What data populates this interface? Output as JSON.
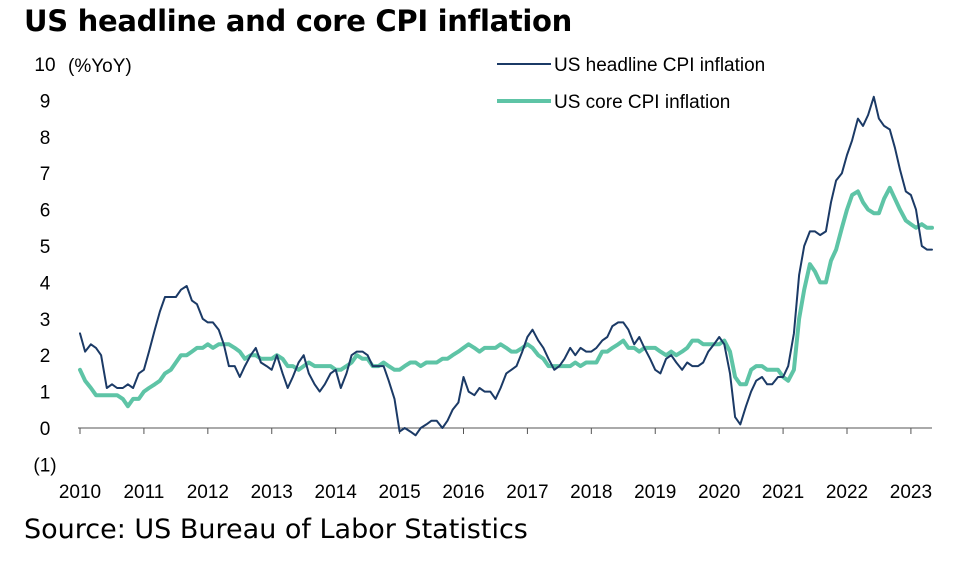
{
  "title": "US headline and core CPI inflation",
  "source": "Source: US Bureau of Labor Statistics",
  "chart_data": {
    "type": "line",
    "ylabel": "(%YoY)",
    "ylim": [
      -1,
      10
    ],
    "yticks": [
      -1,
      0,
      1,
      2,
      3,
      4,
      5,
      6,
      7,
      8,
      9,
      10
    ],
    "ytick_labels": [
      "(1)",
      "0",
      "1",
      "2",
      "3",
      "4",
      "5",
      "6",
      "7",
      "8",
      "9",
      "10"
    ],
    "xlim": [
      2010.0,
      2023.33
    ],
    "xticks": [
      2010,
      2011,
      2012,
      2013,
      2014,
      2015,
      2016,
      2017,
      2018,
      2019,
      2020,
      2021,
      2022,
      2023
    ],
    "xtick_labels": [
      "2010",
      "2011",
      "2012",
      "2013",
      "2014",
      "2015",
      "2016",
      "2017",
      "2018",
      "2019",
      "2020",
      "2021",
      "2022",
      "2023"
    ],
    "grid": false,
    "legend": "top-right",
    "colors": {
      "headline": "#1b3a66",
      "core": "#5ec4a6"
    },
    "series": [
      {
        "name": "US headline CPI inflation",
        "color": "#1b3a66",
        "x": [
          2010.0,
          2010.08,
          2010.17,
          2010.25,
          2010.33,
          2010.42,
          2010.5,
          2010.58,
          2010.67,
          2010.75,
          2010.83,
          2010.92,
          2011.0,
          2011.08,
          2011.17,
          2011.25,
          2011.33,
          2011.42,
          2011.5,
          2011.58,
          2011.67,
          2011.75,
          2011.83,
          2011.92,
          2012.0,
          2012.08,
          2012.17,
          2012.25,
          2012.33,
          2012.42,
          2012.5,
          2012.58,
          2012.67,
          2012.75,
          2012.83,
          2012.92,
          2013.0,
          2013.08,
          2013.17,
          2013.25,
          2013.33,
          2013.42,
          2013.5,
          2013.58,
          2013.67,
          2013.75,
          2013.83,
          2013.92,
          2014.0,
          2014.08,
          2014.17,
          2014.25,
          2014.33,
          2014.42,
          2014.5,
          2014.58,
          2014.67,
          2014.75,
          2014.83,
          2014.92,
          2015.0,
          2015.08,
          2015.17,
          2015.25,
          2015.33,
          2015.42,
          2015.5,
          2015.58,
          2015.67,
          2015.75,
          2015.83,
          2015.92,
          2016.0,
          2016.08,
          2016.17,
          2016.25,
          2016.33,
          2016.42,
          2016.5,
          2016.58,
          2016.67,
          2016.75,
          2016.83,
          2016.92,
          2017.0,
          2017.08,
          2017.17,
          2017.25,
          2017.33,
          2017.42,
          2017.5,
          2017.58,
          2017.67,
          2017.75,
          2017.83,
          2017.92,
          2018.0,
          2018.08,
          2018.17,
          2018.25,
          2018.33,
          2018.42,
          2018.5,
          2018.58,
          2018.67,
          2018.75,
          2018.83,
          2018.92,
          2019.0,
          2019.08,
          2019.17,
          2019.25,
          2019.33,
          2019.42,
          2019.5,
          2019.58,
          2019.67,
          2019.75,
          2019.83,
          2019.92,
          2020.0,
          2020.08,
          2020.17,
          2020.25,
          2020.33,
          2020.42,
          2020.5,
          2020.58,
          2020.67,
          2020.75,
          2020.83,
          2020.92,
          2021.0,
          2021.08,
          2021.17,
          2021.25,
          2021.33,
          2021.42,
          2021.5,
          2021.58,
          2021.67,
          2021.75,
          2021.83,
          2021.92,
          2022.0,
          2022.08,
          2022.17,
          2022.25,
          2022.33,
          2022.42,
          2022.5,
          2022.58,
          2022.67,
          2022.75,
          2022.83,
          2022.92,
          2023.0,
          2023.08,
          2023.17,
          2023.25,
          2023.33
        ],
        "values": [
          2.6,
          2.1,
          2.3,
          2.2,
          2.0,
          1.1,
          1.2,
          1.1,
          1.1,
          1.2,
          1.1,
          1.5,
          1.6,
          2.1,
          2.7,
          3.2,
          3.6,
          3.6,
          3.6,
          3.8,
          3.9,
          3.5,
          3.4,
          3.0,
          2.9,
          2.9,
          2.7,
          2.3,
          1.7,
          1.7,
          1.4,
          1.7,
          2.0,
          2.2,
          1.8,
          1.7,
          1.6,
          2.0,
          1.5,
          1.1,
          1.4,
          1.8,
          2.0,
          1.5,
          1.2,
          1.0,
          1.2,
          1.5,
          1.6,
          1.1,
          1.5,
          2.0,
          2.1,
          2.1,
          2.0,
          1.7,
          1.7,
          1.7,
          1.3,
          0.8,
          -0.1,
          0.0,
          -0.1,
          -0.2,
          0.0,
          0.1,
          0.2,
          0.2,
          0.0,
          0.2,
          0.5,
          0.7,
          1.4,
          1.0,
          0.9,
          1.1,
          1.0,
          1.0,
          0.8,
          1.1,
          1.5,
          1.6,
          1.7,
          2.1,
          2.5,
          2.7,
          2.4,
          2.2,
          1.9,
          1.6,
          1.7,
          1.9,
          2.2,
          2.0,
          2.2,
          2.1,
          2.1,
          2.2,
          2.4,
          2.5,
          2.8,
          2.9,
          2.9,
          2.7,
          2.3,
          2.5,
          2.2,
          1.9,
          1.6,
          1.5,
          1.9,
          2.0,
          1.8,
          1.6,
          1.8,
          1.7,
          1.7,
          1.8,
          2.1,
          2.3,
          2.5,
          2.3,
          1.5,
          0.3,
          0.1,
          0.6,
          1.0,
          1.3,
          1.4,
          1.2,
          1.2,
          1.4,
          1.4,
          1.7,
          2.6,
          4.2,
          5.0,
          5.4,
          5.4,
          5.3,
          5.4,
          6.2,
          6.8,
          7.0,
          7.5,
          7.9,
          8.5,
          8.3,
          8.6,
          9.1,
          8.5,
          8.3,
          8.2,
          7.7,
          7.1,
          6.5,
          6.4,
          6.0,
          5.0,
          4.9,
          4.9
        ]
      },
      {
        "name": "US core CPI inflation",
        "color": "#5ec4a6",
        "x": [
          2010.0,
          2010.08,
          2010.17,
          2010.25,
          2010.33,
          2010.42,
          2010.5,
          2010.58,
          2010.67,
          2010.75,
          2010.83,
          2010.92,
          2011.0,
          2011.08,
          2011.17,
          2011.25,
          2011.33,
          2011.42,
          2011.5,
          2011.58,
          2011.67,
          2011.75,
          2011.83,
          2011.92,
          2012.0,
          2012.08,
          2012.17,
          2012.25,
          2012.33,
          2012.42,
          2012.5,
          2012.58,
          2012.67,
          2012.75,
          2012.83,
          2012.92,
          2013.0,
          2013.08,
          2013.17,
          2013.25,
          2013.33,
          2013.42,
          2013.5,
          2013.58,
          2013.67,
          2013.75,
          2013.83,
          2013.92,
          2014.0,
          2014.08,
          2014.17,
          2014.25,
          2014.33,
          2014.42,
          2014.5,
          2014.58,
          2014.67,
          2014.75,
          2014.83,
          2014.92,
          2015.0,
          2015.08,
          2015.17,
          2015.25,
          2015.33,
          2015.42,
          2015.5,
          2015.58,
          2015.67,
          2015.75,
          2015.83,
          2015.92,
          2016.0,
          2016.08,
          2016.17,
          2016.25,
          2016.33,
          2016.42,
          2016.5,
          2016.58,
          2016.67,
          2016.75,
          2016.83,
          2016.92,
          2017.0,
          2017.08,
          2017.17,
          2017.25,
          2017.33,
          2017.42,
          2017.5,
          2017.58,
          2017.67,
          2017.75,
          2017.83,
          2017.92,
          2018.0,
          2018.08,
          2018.17,
          2018.25,
          2018.33,
          2018.42,
          2018.5,
          2018.58,
          2018.67,
          2018.75,
          2018.83,
          2018.92,
          2019.0,
          2019.08,
          2019.17,
          2019.25,
          2019.33,
          2019.42,
          2019.5,
          2019.58,
          2019.67,
          2019.75,
          2019.83,
          2019.92,
          2020.0,
          2020.08,
          2020.17,
          2020.25,
          2020.33,
          2020.42,
          2020.5,
          2020.58,
          2020.67,
          2020.75,
          2020.83,
          2020.92,
          2021.0,
          2021.08,
          2021.17,
          2021.25,
          2021.33,
          2021.42,
          2021.5,
          2021.58,
          2021.67,
          2021.75,
          2021.83,
          2021.92,
          2022.0,
          2022.08,
          2022.17,
          2022.25,
          2022.33,
          2022.42,
          2022.5,
          2022.58,
          2022.67,
          2022.75,
          2022.83,
          2022.92,
          2023.0,
          2023.08,
          2023.17,
          2023.25,
          2023.33
        ],
        "values": [
          1.6,
          1.3,
          1.1,
          0.9,
          0.9,
          0.9,
          0.9,
          0.9,
          0.8,
          0.6,
          0.8,
          0.8,
          1.0,
          1.1,
          1.2,
          1.3,
          1.5,
          1.6,
          1.8,
          2.0,
          2.0,
          2.1,
          2.2,
          2.2,
          2.3,
          2.2,
          2.3,
          2.3,
          2.3,
          2.2,
          2.1,
          1.9,
          2.0,
          2.0,
          1.9,
          1.9,
          1.9,
          2.0,
          1.9,
          1.7,
          1.7,
          1.6,
          1.7,
          1.8,
          1.7,
          1.7,
          1.7,
          1.7,
          1.6,
          1.6,
          1.7,
          1.8,
          2.0,
          1.9,
          1.9,
          1.7,
          1.7,
          1.8,
          1.7,
          1.6,
          1.6,
          1.7,
          1.8,
          1.8,
          1.7,
          1.8,
          1.8,
          1.8,
          1.9,
          1.9,
          2.0,
          2.1,
          2.2,
          2.3,
          2.2,
          2.1,
          2.2,
          2.2,
          2.2,
          2.3,
          2.2,
          2.1,
          2.1,
          2.2,
          2.3,
          2.2,
          2.0,
          1.9,
          1.7,
          1.7,
          1.7,
          1.7,
          1.7,
          1.8,
          1.7,
          1.8,
          1.8,
          1.8,
          2.1,
          2.1,
          2.2,
          2.3,
          2.4,
          2.2,
          2.2,
          2.1,
          2.2,
          2.2,
          2.2,
          2.1,
          2.0,
          2.1,
          2.0,
          2.1,
          2.2,
          2.4,
          2.4,
          2.3,
          2.3,
          2.3,
          2.3,
          2.4,
          2.1,
          1.4,
          1.2,
          1.2,
          1.6,
          1.7,
          1.7,
          1.6,
          1.6,
          1.6,
          1.4,
          1.3,
          1.6,
          3.0,
          3.8,
          4.5,
          4.3,
          4.0,
          4.0,
          4.6,
          4.9,
          5.5,
          6.0,
          6.4,
          6.5,
          6.2,
          6.0,
          5.9,
          5.9,
          6.3,
          6.6,
          6.3,
          6.0,
          5.7,
          5.6,
          5.5,
          5.6,
          5.5,
          5.5
        ]
      }
    ]
  }
}
